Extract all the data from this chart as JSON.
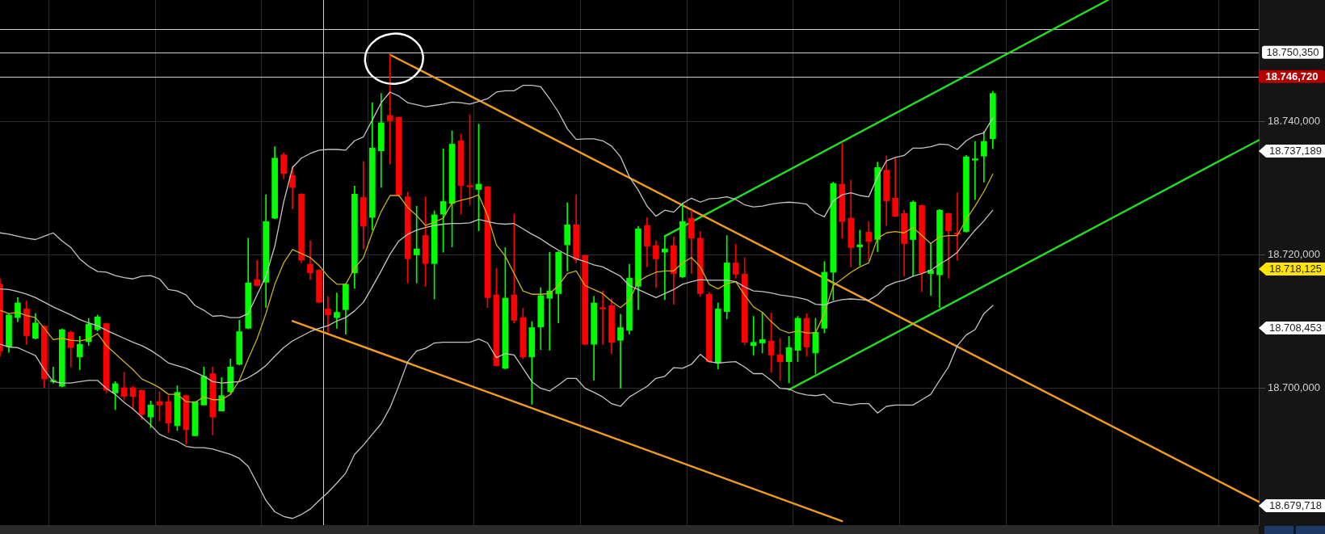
{
  "chart_data": {
    "type": "candlestick",
    "categories": [
      null,
      null,
      null,
      null,
      null,
      null,
      null,
      null,
      null,
      null,
      null,
      null,
      null,
      null,
      null,
      null,
      null,
      null,
      null,
      null,
      null,
      null,
      null,
      null,
      null,
      null,
      null,
      null,
      null,
      null,
      null,
      null,
      null,
      null,
      null,
      null,
      null,
      null,
      null,
      null,
      null,
      null,
      null,
      null,
      null,
      null,
      null,
      null,
      null,
      null,
      null,
      null,
      null,
      null,
      null,
      null,
      null,
      null,
      null,
      null,
      null,
      null,
      null,
      null,
      null,
      null,
      null,
      null,
      null,
      null,
      null,
      null,
      null,
      null,
      null,
      null,
      null,
      null,
      null,
      null,
      null,
      null,
      null,
      null,
      null,
      null,
      null,
      null,
      null,
      null,
      null,
      null,
      null,
      null,
      null,
      null,
      null,
      null,
      null,
      null,
      null,
      null,
      null,
      null,
      null,
      null,
      null,
      null,
      null,
      null,
      null,
      null,
      null,
      null,
      null,
      null,
      null,
      null,
      null,
      null,
      null,
      null,
      null,
      null,
      null,
      null,
      null,
      null,
      null,
      null,
      null,
      null,
      null,
      null,
      null,
      null,
      null,
      null,
      null,
      null,
      null,
      null,
      null
    ],
    "ohlc": [
      [
        18715.6,
        18716.4,
        18704.8,
        18705.6
      ],
      [
        18706.2,
        18711.2,
        18705.4,
        18711.0
      ],
      [
        18710.6,
        18713.6,
        18710.0,
        18712.8
      ],
      [
        18711.9,
        18713.1,
        18706.6,
        18707.9
      ],
      [
        18707.5,
        18711.2,
        18707.4,
        18709.8
      ],
      [
        18709.3,
        18709.4,
        18700.1,
        18701.4
      ],
      [
        18701.0,
        18703.2,
        18700.8,
        18701.2
      ],
      [
        18700.3,
        18708.9,
        18700.2,
        18708.8
      ],
      [
        18708.4,
        18708.6,
        18703.2,
        18706.1
      ],
      [
        18704.7,
        18707.8,
        18702.8,
        18706.6
      ],
      [
        18707.0,
        18710.5,
        18706.4,
        18709.6
      ],
      [
        18708.8,
        18711.0,
        18708.6,
        18710.7
      ],
      [
        18709.7,
        18709.8,
        18699.3,
        18699.7
      ],
      [
        18699.3,
        18701.0,
        18696.8,
        18700.7
      ],
      [
        18700.1,
        18702.4,
        18698.3,
        18698.8
      ],
      [
        18700.1,
        18700.3,
        18696.9,
        18698.8
      ],
      [
        18699.7,
        18699.8,
        18695.3,
        18696.1
      ],
      [
        18695.7,
        18698.1,
        18694.1,
        18697.5
      ],
      [
        18698.0,
        18699.5,
        18695.1,
        18697.5
      ],
      [
        18698.0,
        18698.9,
        18693.4,
        18694.8
      ],
      [
        18694.4,
        18700.4,
        18693.7,
        18699.4
      ],
      [
        18698.9,
        18699.0,
        18691.6,
        18693.8
      ],
      [
        18692.9,
        18698.0,
        18692.9,
        18698.0
      ],
      [
        18697.5,
        18703.2,
        18697.5,
        18701.8
      ],
      [
        18702.2,
        18703.2,
        18693.0,
        18695.7
      ],
      [
        18696.6,
        18701.6,
        18696.6,
        18698.9
      ],
      [
        18699.5,
        18704.4,
        18699.3,
        18703.2
      ],
      [
        18703.6,
        18710.2,
        18703.5,
        18708.5
      ],
      [
        18709.0,
        18722.5,
        18708.9,
        18715.8
      ],
      [
        18716.3,
        18719.2,
        18715.3,
        18715.4
      ],
      [
        18715.9,
        18729.0,
        18712.1,
        18725.0
      ],
      [
        18725.5,
        18736.2,
        18725.4,
        18734.5
      ],
      [
        18735.0,
        18735.3,
        18731.4,
        18732.2
      ],
      [
        18731.9,
        18733.3,
        18726.9,
        18730.1
      ],
      [
        18729.1,
        18729.2,
        18718.8,
        18719.2
      ],
      [
        18718.6,
        18722.1,
        18716.3,
        18717.3
      ],
      [
        18717.7,
        18717.8,
        18712.8,
        18712.9
      ],
      [
        18711.9,
        18713.8,
        18708.4,
        18711.0
      ],
      [
        18710.6,
        18714.3,
        18709.0,
        18711.4
      ],
      [
        18711.8,
        18715.7,
        18708.1,
        18715.6
      ],
      [
        18717.3,
        18730.3,
        18715.0,
        18729.1
      ],
      [
        18728.6,
        18734.0,
        18720.9,
        18724.3
      ],
      [
        18725.6,
        18742.8,
        18723.7,
        18736.0
      ],
      [
        18735.6,
        18744.2,
        18730.1,
        18739.8
      ],
      [
        18740.9,
        18750.0,
        18733.6,
        18740.1
      ],
      [
        18740.6,
        18740.7,
        18728.7,
        18728.9
      ],
      [
        18728.7,
        18729.4,
        18715.8,
        18719.4
      ],
      [
        18720.0,
        18727.3,
        18715.8,
        18720.9
      ],
      [
        18722.9,
        18728.7,
        18715.3,
        18718.7
      ],
      [
        18718.7,
        18726.6,
        18713.4,
        18726.0
      ],
      [
        18726.1,
        18735.9,
        18720.4,
        18728.0
      ],
      [
        18727.7,
        18738.6,
        18721.2,
        18736.6
      ],
      [
        18737.1,
        18738.1,
        18726.1,
        18730.4
      ],
      [
        18730.4,
        18741.0,
        18727.5,
        18730.2
      ],
      [
        18729.8,
        18739.6,
        18723.6,
        18730.6
      ],
      [
        18730.2,
        18730.3,
        18712.1,
        18713.6
      ],
      [
        18714.0,
        18718.0,
        18703.3,
        18703.4
      ],
      [
        18703.0,
        18721.1,
        18702.9,
        18713.5
      ],
      [
        18714.0,
        18726.1,
        18709.8,
        18710.2
      ],
      [
        18710.6,
        18712.0,
        18704.4,
        18704.7
      ],
      [
        18704.7,
        18710.0,
        18697.6,
        18709.1
      ],
      [
        18709.2,
        18715.1,
        18705.8,
        18713.9
      ],
      [
        18713.5,
        18720.4,
        18705.7,
        18714.6
      ],
      [
        18714.2,
        18720.5,
        18709.8,
        18720.4
      ],
      [
        18721.5,
        18727.8,
        18717.6,
        18724.5
      ],
      [
        18724.5,
        18729.0,
        18718.8,
        18719.3
      ],
      [
        18719.9,
        18720.0,
        18706.5,
        18706.6
      ],
      [
        18706.6,
        18713.8,
        18701.2,
        18712.8
      ],
      [
        18712.1,
        18714.6,
        18706.6,
        18711.9
      ],
      [
        18712.4,
        18713.4,
        18705.2,
        18706.9
      ],
      [
        18707.2,
        18711.1,
        18700.0,
        18709.1
      ],
      [
        18708.7,
        18718.6,
        18708.1,
        18716.5
      ],
      [
        18715.3,
        18724.3,
        18711.8,
        18723.9
      ],
      [
        18724.4,
        18725.6,
        18718.2,
        18721.3
      ],
      [
        18721.4,
        18722.1,
        18715.1,
        18719.4
      ],
      [
        18720.4,
        18722.9,
        18713.3,
        18720.9
      ],
      [
        18721.4,
        18722.7,
        18712.6,
        18717.2
      ],
      [
        18716.7,
        18727.7,
        18716.6,
        18725.0
      ],
      [
        18725.5,
        18726.7,
        18717.2,
        18722.5
      ],
      [
        18722.5,
        18723.5,
        18713.8,
        18714.2
      ],
      [
        18714.1,
        18714.4,
        18703.9,
        18704.0
      ],
      [
        18703.8,
        18712.8,
        18702.9,
        18711.9
      ],
      [
        18711.5,
        18722.9,
        18710.4,
        18718.8
      ],
      [
        18718.8,
        18721.6,
        18716.5,
        18717.1
      ],
      [
        18717.1,
        18719.6,
        18706.5,
        18706.9
      ],
      [
        18706.4,
        18710.8,
        18705.0,
        18706.9
      ],
      [
        18706.8,
        18711.4,
        18705.3,
        18707.3
      ],
      [
        18707.1,
        18711.3,
        18702.4,
        18705.0
      ],
      [
        18705.0,
        18707.5,
        18701.2,
        18704.0
      ],
      [
        18704.0,
        18707.8,
        18700.8,
        18706.1
      ],
      [
        18705.7,
        18710.8,
        18704.0,
        18710.5
      ],
      [
        18710.5,
        18711.2,
        18704.8,
        18706.2
      ],
      [
        18705.3,
        18710.5,
        18702.2,
        18708.4
      ],
      [
        18709.0,
        18719.0,
        18708.3,
        18717.4
      ],
      [
        18717.4,
        18730.9,
        18713.2,
        18730.7
      ],
      [
        18730.6,
        18736.7,
        18722.5,
        18725.0
      ],
      [
        18725.5,
        18731.2,
        18718.2,
        18721.1
      ],
      [
        18721.2,
        18723.7,
        18718.4,
        18721.5
      ],
      [
        18723.4,
        18725.0,
        18719.2,
        18722.0
      ],
      [
        18722.3,
        18733.9,
        18720.5,
        18733.1
      ],
      [
        18732.7,
        18734.8,
        18724.4,
        18728.1
      ],
      [
        18728.5,
        18734.5,
        18725.7,
        18725.8
      ],
      [
        18726.2,
        18726.7,
        18716.8,
        18721.7
      ],
      [
        18722.3,
        18728.1,
        18716.8,
        18727.9
      ],
      [
        18727.4,
        18727.5,
        18714.5,
        18717.3
      ],
      [
        18717.2,
        18721.7,
        18713.9,
        18717.7
      ],
      [
        18717.0,
        18726.8,
        18712.1,
        18726.7
      ],
      [
        18726.2,
        18726.3,
        18716.5,
        18723.6
      ],
      [
        18723.3,
        18729.3,
        18719.2,
        18723.1
      ],
      [
        18723.5,
        18734.9,
        18723.4,
        18734.7
      ],
      [
        18734.2,
        18737.0,
        18728.3,
        18734.4
      ],
      [
        18734.8,
        18738.5,
        18730.9,
        18737.0
      ],
      [
        18737.4,
        18744.5,
        18735.9,
        18744.2
      ],
      null,
      null,
      null,
      null,
      null,
      null,
      null,
      null,
      null,
      null,
      null,
      null,
      null,
      null,
      null,
      null,
      null,
      null,
      null,
      null,
      null,
      null,
      null,
      null,
      null,
      null,
      null,
      null,
      null,
      null
    ],
    "colors": [
      "#ff0000",
      "#00ff00",
      "#00ff00",
      "#ff0000",
      "#00ff00",
      "#ff0000",
      "#00ff00",
      "#00ff00",
      "#ff0000",
      "#00ff00",
      "#00ff00",
      "#00ff00",
      "#ff0000",
      "#00ff00",
      "#ff0000",
      "#ff0000",
      "#ff0000",
      "#00ff00",
      "#ff0000",
      "#ff0000",
      "#00ff00",
      "#ff0000",
      "#00ff00",
      "#00ff00",
      "#ff0000",
      "#00ff00",
      "#00ff00",
      "#00ff00",
      "#00ff00",
      "#ff0000",
      "#00ff00",
      "#00ff00",
      "#ff0000",
      "#ff0000",
      "#ff0000",
      "#ff0000",
      "#ff0000",
      "#ff0000",
      "#00ff00",
      "#00ff00",
      "#00ff00",
      "#ff0000",
      "#00ff00",
      "#00ff00",
      "#ff0000",
      "#ff0000",
      "#ff0000",
      "#00ff00",
      "#ff0000",
      "#00ff00",
      "#00ff00",
      "#00ff00",
      "#ff0000",
      "#ff0000",
      "#00ff00",
      "#ff0000",
      "#ff0000",
      "#00ff00",
      "#ff0000",
      "#ff0000",
      "#00ff00",
      "#00ff00",
      "#00ff00",
      "#00ff00",
      "#00ff00",
      "#ff0000",
      "#ff0000",
      "#00ff00",
      "#ff0000",
      "#ff0000",
      "#00ff00",
      "#00ff00",
      "#00ff00",
      "#ff0000",
      "#ff0000",
      "#00ff00",
      "#ff0000",
      "#00ff00",
      "#ff0000",
      "#ff0000",
      "#ff0000",
      "#00ff00",
      "#00ff00",
      "#ff0000",
      "#ff0000",
      "#00ff00",
      "#00ff00",
      "#ff0000",
      "#ff0000",
      "#00ff00",
      "#00ff00",
      "#ff0000",
      "#00ff00",
      "#00ff00",
      "#00ff00",
      "#ff0000",
      "#ff0000",
      "#00ff00",
      "#ff0000",
      "#00ff00",
      "#ff0000",
      "#ff0000",
      "#ff0000",
      "#00ff00",
      "#ff0000",
      "#00ff00",
      "#00ff00",
      "#ff0000",
      "#ff0000",
      "#00ff00",
      "#00ff00",
      "#00ff00",
      "#00ff00",
      null,
      null,
      null,
      null,
      null,
      null,
      null,
      null,
      null,
      null,
      null,
      null,
      null,
      null,
      null,
      null,
      null,
      null,
      null,
      null,
      null,
      null,
      null,
      null,
      null,
      null,
      null,
      null,
      null,
      null
    ],
    "series": [
      {
        "type": "line",
        "color": "#c4c4c4",
        "values": [
          18723.3,
          18723.1,
          18722.8,
          18722.5,
          18722.3,
          18722.8,
          18723.3,
          18722.1,
          18721.1,
          18719.4,
          18718.3,
          18717.5,
          18717.4,
          18716.9,
          18716.6,
          18716.4,
          18716.8,
          18716.9,
          18716.4,
          18714.8,
          18714.6,
          18714.0,
          18712.4,
          18711.7,
          18710.8,
          18710.9,
          18710.6,
          18710.6,
          18711.2,
          18714.0,
          18716.8,
          18721.3,
          18727.9,
          18733.1,
          18734.5,
          18735.2,
          18735.7,
          18735.8,
          18735.8,
          18735.7,
          18737.1,
          18737.7,
          18740.2,
          18742.8,
          18744.4,
          18743.8,
          18742.8,
          18742.5,
          18742.2,
          18742.4,
          18742.6,
          18742.9,
          18742.8,
          18742.6,
          18743.0,
          18743.4,
          18744.4,
          18744.6,
          18744.6,
          18745.4,
          18745.4,
          18745.2,
          18743.4,
          18741.4,
          18738.9,
          18737.3,
          18737.4,
          18737.4,
          18737.1,
          18736.3,
          18734.7,
          18731.7,
          18729.7,
          18727.3,
          18725.8,
          18726.7,
          18726.4,
          18727.7,
          18728.5,
          18727.9,
          18728.4,
          18728.5,
          18728.7,
          18728.3,
          18727.5,
          18727.2,
          18727.3,
          18727.6,
          18727.8,
          18727.9,
          18727.8,
          18727.6,
          18726.3,
          18725.7,
          18728.1,
          18729.0,
          18729.3,
          18728.9,
          18728.7,
          18731.7,
          18734.1,
          18734.6,
          18734.9,
          18736.0,
          18736.0,
          18736.2,
          18736.6,
          18736.5,
          18735.8,
          18737.1,
          18737.9,
          18738.3,
          18740.5,
          null,
          null,
          null,
          null,
          null,
          null,
          null,
          null,
          null,
          null,
          null,
          null,
          null,
          null,
          null,
          null,
          null,
          null,
          null,
          null,
          null,
          null,
          null,
          null,
          null,
          null,
          null,
          null,
          null,
          null
        ]
      },
      {
        "type": "line",
        "color": "#c4c4c4",
        "values": [
          18714.9,
          18714.8,
          18714.5,
          18714.1,
          18713.6,
          18712.9,
          18712.2,
          18711.6,
          18711.0,
          18710.3,
          18709.8,
          18709.4,
          18708.7,
          18708.1,
          18707.5,
          18706.9,
          18706.4,
          18705.7,
          18704.8,
          18703.8,
          18703.4,
          18703.0,
          18702.4,
          18701.8,
          18701.0,
          18700.8,
          18700.9,
          18701.0,
          18701.6,
          18702.4,
          18703.4,
          18704.8,
          18706.1,
          18707.1,
          18707.8,
          18708.5,
          18709.0,
          18709.4,
          18710.1,
          18710.6,
          18711.6,
          18712.9,
          18715.2,
          18717.6,
          18720.1,
          18722.1,
          18723.1,
          18723.7,
          18724.1,
          18724.4,
          18724.6,
          18724.7,
          18724.7,
          18724.8,
          18725.3,
          18725.0,
          18724.7,
          18724.6,
          18724.7,
          18723.9,
          18723.1,
          18722.4,
          18721.5,
          18720.7,
          18720.0,
          18719.4,
          18719.0,
          18718.5,
          18718.2,
          18717.5,
          18716.8,
          18715.4,
          18714.8,
          18714.2,
          18713.6,
          18714.2,
          18714.8,
          18715.6,
          18716.0,
          18716.3,
          18716.2,
          18716.2,
          18716.2,
          18716.0,
          18715.2,
          18714.6,
          18714.5,
          18714.3,
          18714.0,
          18713.8,
          18713.6,
          18713.3,
          18712.6,
          18712.5,
          18713.0,
          18713.3,
          18713.4,
          18713.3,
          18713.2,
          18714.0,
          18715.3,
          18715.9,
          18716.2,
          18716.8,
          18717.2,
          18717.7,
          18718.6,
          18719.4,
          18720.4,
          18722.1,
          18723.7,
          18725.1,
          18726.7,
          null,
          null,
          null,
          null,
          null,
          null,
          null,
          null,
          null,
          null,
          null,
          null,
          null,
          null,
          null,
          null,
          null,
          null,
          null,
          null,
          null,
          null,
          null,
          null,
          null,
          null,
          null,
          null,
          null,
          null
        ]
      },
      {
        "type": "line",
        "color": "#c4c4c4",
        "values": [
          18706.6,
          18706.2,
          18706.1,
          18705.5,
          18704.9,
          18702.8,
          18701.0,
          18700.8,
          18700.8,
          18701.0,
          18701.2,
          18701.2,
          18700.0,
          18699.1,
          18697.9,
          18696.9,
          18695.7,
          18694.5,
          18693.1,
          18692.5,
          18692.1,
          18691.3,
          18691.1,
          18691.1,
          18690.9,
          18690.5,
          18690.1,
          18689.5,
          18688.3,
          18685.8,
          18683.2,
          18681.5,
          18680.8,
          18680.5,
          18681.1,
          18681.9,
          18683.2,
          18684.4,
          18685.8,
          18687.3,
          18690.1,
          18691.5,
          18693.1,
          18694.7,
          18697.1,
          18700.4,
          18704.0,
          18705.6,
          18706.0,
          18706.8,
          18706.9,
          18706.9,
          18706.9,
          18706.9,
          18707.4,
          18706.8,
          18704.6,
          18705.2,
          18705.0,
          18703.0,
          18701.0,
          18700.0,
          18699.6,
          18700.5,
          18701.5,
          18701.5,
          18700.0,
          18699.4,
          18698.7,
          18697.7,
          18697.3,
          18698.7,
          18699.5,
          18700.3,
          18701.5,
          18701.8,
          18703.1,
          18703.0,
          18703.6,
          18705.1,
          18704.0,
          18703.8,
          18703.9,
          18704.0,
          18703.2,
          18702.2,
          18702.2,
          18701.2,
          18700.0,
          18699.9,
          18699.3,
          18699.0,
          18698.9,
          18699.1,
          18697.9,
          18697.7,
          18697.5,
          18697.7,
          18697.7,
          18696.3,
          18697.3,
          18697.5,
          18697.5,
          18697.5,
          18698.3,
          18699.1,
          18701.2,
          18703.2,
          18706.4,
          18708.0,
          18708.8,
          18711.2,
          18712.4,
          null,
          null,
          null,
          null,
          null,
          null,
          null,
          null,
          null,
          null,
          null,
          null,
          null,
          null,
          null,
          null,
          null,
          null,
          null,
          null,
          null,
          null,
          null,
          null,
          null,
          null,
          null,
          null,
          null,
          null
        ]
      },
      {
        "type": "line",
        "color": "#c8b020",
        "values": [
          18711.7,
          18711.2,
          18711.4,
          18710.9,
          18710.6,
          18709.0,
          18707.3,
          18707.5,
          18707.2,
          18707.1,
          18707.4,
          18708.2,
          18706.4,
          18705.2,
          18704.0,
          18702.8,
          18701.4,
          18700.8,
          18700.1,
          18699.1,
          18699.1,
          18698.0,
          18697.9,
          18698.7,
          18698.3,
          18698.3,
          18699.1,
          18701.2,
          18704.4,
          18707.4,
          18711.2,
          18715.6,
          18718.8,
          18720.8,
          18720.2,
          18719.6,
          18718.4,
          18716.8,
          18715.6,
          18715.6,
          18718.0,
          18719.6,
          18723.3,
          18726.5,
          18728.9,
          18728.9,
          18727.1,
          18725.9,
          18724.4,
          18724.9,
          18725.5,
          18727.8,
          18728.2,
          18728.5,
          18729.0,
          18725.9,
          18721.5,
          18719.8,
          18717.2,
          18714.6,
          18714.1,
          18714.1,
          18714.2,
          18715.4,
          18717.2,
          18717.6,
          18715.4,
          18714.8,
          18714.2,
          18713.0,
          18712.1,
          18713.2,
          18716.0,
          18716.8,
          18717.4,
          18717.6,
          18717.6,
          18718.8,
          18719.6,
          18718.2,
          18715.6,
          18714.9,
          18715.7,
          18716.0,
          18714.0,
          18712.2,
          18711.4,
          18710.0,
          18708.8,
          18708.3,
          18708.6,
          18708.3,
          18708.3,
          18711.2,
          18715.4,
          18716.4,
          18717.4,
          18718.2,
          18718.8,
          18722.5,
          18723.3,
          18723.5,
          18723.3,
          18724.1,
          18722.9,
          18721.7,
          18722.7,
          18722.9,
          18722.9,
          18725.3,
          18727.3,
          18729.5,
          18732.1,
          null,
          null,
          null,
          null,
          null,
          null,
          null,
          null,
          null,
          null,
          null,
          null,
          null,
          null,
          null,
          null,
          null,
          null,
          null,
          null,
          null,
          null,
          null,
          null,
          null,
          null,
          null,
          null,
          null,
          null
        ]
      },
      {
        "type": "line",
        "color": "#f39c1e",
        "values": [
          null,
          null,
          null,
          null,
          null,
          null,
          null,
          null,
          null,
          null,
          null,
          null,
          null,
          null,
          null,
          null,
          null,
          null,
          null,
          null,
          null,
          null,
          null,
          null,
          null,
          null,
          null,
          null,
          null,
          null,
          null,
          null,
          null,
          null,
          null,
          null,
          null,
          null,
          null,
          null,
          null,
          null,
          null,
          null,
          18750.0,
          null,
          null,
          null,
          null,
          null,
          null,
          null,
          null,
          null,
          null,
          null,
          null,
          null,
          null,
          null,
          null,
          null,
          null,
          null,
          null,
          null,
          null,
          null,
          null,
          null,
          null,
          null,
          null,
          null,
          null,
          null,
          null,
          null,
          null,
          null,
          null,
          null,
          null,
          null,
          null,
          null,
          null,
          null,
          null,
          null,
          null,
          null,
          null,
          null,
          null,
          null,
          null,
          null,
          null,
          null,
          null,
          null,
          null,
          null,
          null,
          null,
          null,
          null,
          null,
          null,
          null,
          null,
          null,
          null,
          null,
          null,
          null,
          null,
          null,
          null,
          null,
          null,
          null,
          null,
          null,
          null,
          null,
          null,
          null,
          null,
          null,
          null,
          null,
          null,
          null,
          null,
          null,
          null,
          null,
          null,
          null,
          null,
          18683.0
        ]
      },
      {
        "type": "line",
        "color": "#f39c1e",
        "values": [
          null,
          null,
          null,
          null,
          null,
          null,
          null,
          null,
          null,
          null,
          null,
          null,
          null,
          null,
          null,
          null,
          null,
          null,
          null,
          null,
          null,
          null,
          null,
          null,
          null,
          null,
          null,
          null,
          null,
          null,
          null,
          null,
          null,
          18710.1,
          null,
          null,
          null,
          null,
          null,
          null,
          null,
          null,
          null,
          null,
          null,
          null,
          null,
          null,
          null,
          null,
          null,
          null,
          null,
          null,
          null,
          null,
          null,
          null,
          null,
          null,
          null,
          null,
          null,
          null,
          null,
          null,
          null,
          null,
          null,
          null,
          null,
          null,
          null,
          null,
          null,
          null,
          null,
          null,
          null,
          null,
          null,
          null,
          null,
          null,
          null,
          null,
          null,
          null,
          null,
          null,
          null,
          null,
          null,
          null,
          null,
          18680.1,
          null,
          null,
          null,
          null,
          null,
          null,
          null,
          null,
          null,
          null,
          null,
          null,
          null,
          null,
          null,
          null,
          null,
          null,
          null,
          null,
          null,
          null,
          null,
          null,
          null,
          null,
          null,
          null,
          null,
          null,
          null,
          null,
          null,
          null,
          null,
          null,
          null,
          null,
          null,
          null,
          null,
          null,
          null,
          null,
          null,
          null,
          null
        ]
      },
      {
        "type": "line",
        "color": "#22dd22",
        "values": [
          null,
          null,
          null,
          null,
          null,
          null,
          null,
          null,
          null,
          null,
          null,
          null,
          null,
          null,
          null,
          null,
          null,
          null,
          null,
          null,
          null,
          null,
          null,
          null,
          null,
          null,
          null,
          null,
          null,
          null,
          null,
          null,
          null,
          null,
          null,
          null,
          null,
          null,
          null,
          null,
          null,
          null,
          null,
          null,
          null,
          null,
          null,
          null,
          null,
          null,
          null,
          null,
          null,
          null,
          null,
          null,
          null,
          null,
          null,
          null,
          null,
          null,
          null,
          null,
          null,
          null,
          null,
          null,
          null,
          null,
          null,
          null,
          null,
          null,
          null,
          18722.8,
          null,
          null,
          null,
          null,
          null,
          null,
          null,
          null,
          null,
          null,
          null,
          null,
          null,
          null,
          null,
          null,
          null,
          null,
          null,
          null,
          null,
          null,
          null,
          null,
          null,
          null,
          null,
          null,
          null,
          null,
          null,
          null,
          null,
          null,
          null,
          null,
          null,
          null,
          null,
          null,
          null,
          null,
          null,
          null,
          null,
          null,
          null,
          null,
          null,
          18758.2,
          null,
          null,
          null,
          null,
          null,
          null,
          null,
          null,
          null,
          null,
          null,
          null,
          null,
          null,
          null,
          null,
          null
        ]
      },
      {
        "type": "line",
        "color": "#22dd22",
        "values": [
          null,
          null,
          null,
          null,
          null,
          null,
          null,
          null,
          null,
          null,
          null,
          null,
          null,
          null,
          null,
          null,
          null,
          null,
          null,
          null,
          null,
          null,
          null,
          null,
          null,
          null,
          null,
          null,
          null,
          null,
          null,
          null,
          null,
          null,
          null,
          null,
          null,
          null,
          null,
          null,
          null,
          null,
          null,
          null,
          null,
          null,
          null,
          null,
          null,
          null,
          null,
          null,
          null,
          null,
          null,
          null,
          null,
          null,
          null,
          null,
          null,
          null,
          null,
          null,
          null,
          null,
          null,
          null,
          null,
          null,
          null,
          null,
          null,
          null,
          null,
          null,
          null,
          null,
          null,
          null,
          null,
          null,
          null,
          null,
          null,
          null,
          null,
          null,
          null,
          18699.8,
          null,
          null,
          null,
          null,
          null,
          null,
          null,
          null,
          null,
          null,
          null,
          null,
          null,
          null,
          null,
          null,
          null,
          null,
          null,
          null,
          null,
          null,
          null,
          null,
          null,
          null,
          null,
          null,
          null,
          null,
          null,
          null,
          null,
          null,
          null,
          null,
          null,
          null,
          null,
          null,
          null,
          null,
          null,
          null,
          null,
          null,
          null,
          null,
          null,
          null,
          null,
          null,
          18737.2
        ]
      }
    ],
    "ylim": [
      18679.5,
      18758.2
    ],
    "yticks": [
      {
        "value": 18700,
        "label": "18.700,000"
      },
      {
        "value": 18720,
        "label": "18.720,000"
      },
      {
        "value": 18740,
        "label": "18.740,000"
      }
    ],
    "tick_labels": "y",
    "grid": true,
    "ref_lines": [
      {
        "axis": "y",
        "value": 18753.8
      },
      {
        "axis": "y",
        "value": 18750.35,
        "label": "18.750,350"
      },
      {
        "axis": "y",
        "value": 18746.72,
        "label": "18.746,720"
      }
    ],
    "annotations": [
      "18.737,189",
      "18.718,125",
      "18.708,453",
      "18.679,718"
    ]
  }
}
